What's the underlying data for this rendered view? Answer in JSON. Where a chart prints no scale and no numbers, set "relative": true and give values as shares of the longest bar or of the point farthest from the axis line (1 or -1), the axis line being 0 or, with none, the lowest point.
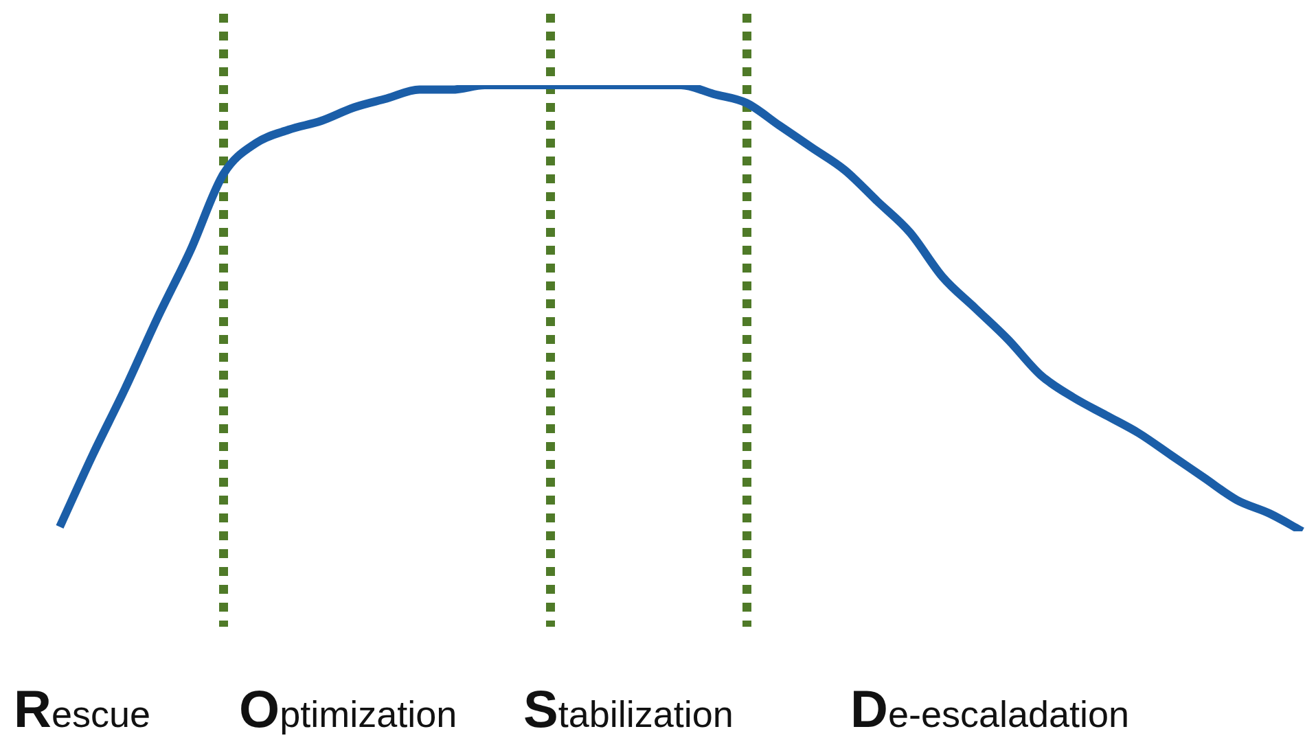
{
  "chart_data": {
    "type": "line",
    "relative": true,
    "categories": [
      null,
      null,
      null,
      null,
      null,
      null,
      null,
      null,
      null,
      null,
      null,
      null,
      null,
      null,
      null,
      null,
      null,
      null,
      null,
      null,
      null,
      null,
      null,
      null,
      null,
      null,
      null,
      null,
      null,
      null,
      null,
      null,
      null,
      null,
      null,
      null,
      null,
      null,
      null
    ],
    "series": [
      {
        "color": "#1b5ea8",
        "values": [
          0.01,
          0.17,
          0.32,
          0.48,
          0.63,
          0.8,
          0.87,
          0.9,
          0.92,
          0.95,
          0.97,
          0.99,
          0.99,
          1,
          1,
          1,
          1,
          1,
          1,
          1,
          0.98,
          0.96,
          0.91,
          0.86,
          0.81,
          0.74,
          0.67,
          0.57,
          0.5,
          0.43,
          0.35,
          0.3,
          0.26,
          0.22,
          0.17,
          0.12,
          0.07,
          0.04,
          0
        ]
      }
    ],
    "annotations": [
      "Rescue",
      "Optimization",
      "Stabilization",
      "De-escaladation"
    ],
    "legend": false,
    "marker": "none",
    "line_style": "solid"
  }
}
